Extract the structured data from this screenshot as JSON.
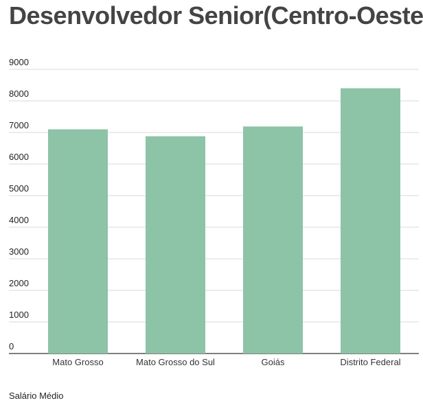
{
  "chart_data": {
    "type": "bar",
    "title": "Desenvolvedor Senior(Centro-Oeste)",
    "categories": [
      "Mato Grosso",
      "Mato Grosso do Sul",
      "Goiás",
      "Distrito Federal"
    ],
    "series": [
      {
        "name": "Salário Médio",
        "values": [
          7100,
          6880,
          7190,
          8400
        ]
      }
    ],
    "xlabel": "",
    "ylabel": "",
    "ylim": [
      0,
      9000
    ],
    "yticks": [
      0,
      1000,
      2000,
      3000,
      4000,
      5000,
      6000,
      7000,
      8000,
      9000
    ],
    "grid": true,
    "legend_position": "bottom-left",
    "colors": {
      "bar": "#8dc3a7",
      "grid": "#d9d9d9",
      "axis": "#333333"
    }
  }
}
